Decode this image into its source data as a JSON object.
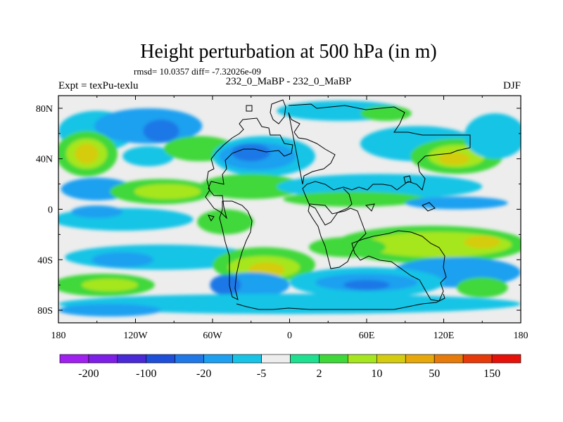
{
  "chart_data": {
    "type": "heatmap",
    "title": "Height perturbation at 500 hPa (in m)",
    "subtitle": "rmsd= 10.0357 diff= -7.32026e-09",
    "left_label": "Expt = texPu-texlu",
    "center_label": "232_0_MaBP - 232_0_MaBP",
    "right_label": "DJF",
    "x_ticks": [
      -180,
      -120,
      -60,
      0,
      60,
      120,
      180
    ],
    "x_tick_labels": [
      "180",
      "120W",
      "60W",
      "0",
      "60E",
      "120E",
      "180"
    ],
    "y_ticks": [
      80,
      40,
      0,
      -40,
      -80
    ],
    "y_tick_labels": [
      "80N",
      "40N",
      "0",
      "40S",
      "80S"
    ],
    "xlim": [
      -180,
      180
    ],
    "ylim": [
      -90,
      90
    ],
    "colorbar_labels": [
      "-200",
      "-100",
      "-20",
      "-5",
      "2",
      "10",
      "50",
      "150"
    ],
    "colorbar_colors": [
      "#a020f0",
      "#7d1fe6",
      "#4a2ad6",
      "#1e4fd8",
      "#1f78e6",
      "#1ea0f0",
      "#17c4e6",
      "#ededed",
      "#1ee090",
      "#3fd83a",
      "#a6e61e",
      "#d4cc10",
      "#e6a80a",
      "#e67a0a",
      "#e63a0a",
      "#e6120a"
    ],
    "contour_fill": {
      "background_level": "#ededed",
      "blobs": [
        {
          "lon": -150,
          "lat": 62,
          "rx": 30,
          "ry": 16,
          "color": "#17c4e6"
        },
        {
          "lon": -110,
          "lat": 66,
          "rx": 42,
          "ry": 14,
          "color": "#1ea0f0"
        },
        {
          "lon": -100,
          "lat": 62,
          "rx": 14,
          "ry": 9,
          "color": "#1f78e6"
        },
        {
          "lon": -158,
          "lat": 44,
          "rx": 24,
          "ry": 18,
          "color": "#3fd83a"
        },
        {
          "lon": -158,
          "lat": 44,
          "rx": 16,
          "ry": 12,
          "color": "#a6e61e"
        },
        {
          "lon": -158,
          "lat": 44,
          "rx": 9,
          "ry": 8,
          "color": "#d4cc10"
        },
        {
          "lon": -110,
          "lat": 42,
          "rx": 20,
          "ry": 8,
          "color": "#17c4e6"
        },
        {
          "lon": -70,
          "lat": 48,
          "rx": 28,
          "ry": 10,
          "color": "#3fd83a"
        },
        {
          "lon": -20,
          "lat": 42,
          "rx": 40,
          "ry": 16,
          "color": "#17c4e6"
        },
        {
          "lon": -25,
          "lat": 42,
          "rx": 30,
          "ry": 11,
          "color": "#1ea0f0"
        },
        {
          "lon": -30,
          "lat": 45,
          "rx": 15,
          "ry": 7,
          "color": "#1f78e6"
        },
        {
          "lon": 40,
          "lat": 78,
          "rx": 50,
          "ry": 8,
          "color": "#17c4e6"
        },
        {
          "lon": 75,
          "lat": 76,
          "rx": 20,
          "ry": 6,
          "color": "#3fd83a"
        },
        {
          "lon": 100,
          "lat": 52,
          "rx": 45,
          "ry": 14,
          "color": "#17c4e6"
        },
        {
          "lon": 130,
          "lat": 42,
          "rx": 36,
          "ry": 14,
          "color": "#3fd83a"
        },
        {
          "lon": 130,
          "lat": 42,
          "rx": 22,
          "ry": 9,
          "color": "#a6e61e"
        },
        {
          "lon": 128,
          "lat": 40,
          "rx": 12,
          "ry": 5,
          "color": "#d4cc10"
        },
        {
          "lon": 160,
          "lat": 58,
          "rx": 24,
          "ry": 18,
          "color": "#17c4e6"
        },
        {
          "lon": -150,
          "lat": 16,
          "rx": 28,
          "ry": 9,
          "color": "#1ea0f0"
        },
        {
          "lon": -100,
          "lat": 14,
          "rx": 40,
          "ry": 10,
          "color": "#3fd83a"
        },
        {
          "lon": -95,
          "lat": 14,
          "rx": 26,
          "ry": 6,
          "color": "#a6e61e"
        },
        {
          "lon": -30,
          "lat": 18,
          "rx": 40,
          "ry": 10,
          "color": "#3fd83a"
        },
        {
          "lon": 70,
          "lat": 18,
          "rx": 80,
          "ry": 10,
          "color": "#17c4e6"
        },
        {
          "lon": 50,
          "lat": 8,
          "rx": 55,
          "ry": 6,
          "color": "#3fd83a"
        },
        {
          "lon": 130,
          "lat": 5,
          "rx": 40,
          "ry": 5,
          "color": "#1ea0f0"
        },
        {
          "lon": -130,
          "lat": -8,
          "rx": 55,
          "ry": 9,
          "color": "#17c4e6"
        },
        {
          "lon": -150,
          "lat": -2,
          "rx": 20,
          "ry": 5,
          "color": "#1ea0f0"
        },
        {
          "lon": -50,
          "lat": -10,
          "rx": 22,
          "ry": 10,
          "color": "#3fd83a"
        },
        {
          "lon": 110,
          "lat": -28,
          "rx": 75,
          "ry": 15,
          "color": "#3fd83a"
        },
        {
          "lon": 115,
          "lat": -28,
          "rx": 58,
          "ry": 10,
          "color": "#a6e61e"
        },
        {
          "lon": 150,
          "lat": -26,
          "rx": 14,
          "ry": 5,
          "color": "#d4cc10"
        },
        {
          "lon": 45,
          "lat": -30,
          "rx": 30,
          "ry": 8,
          "color": "#3fd83a"
        },
        {
          "lon": -100,
          "lat": -38,
          "rx": 75,
          "ry": 10,
          "color": "#17c4e6"
        },
        {
          "lon": -130,
          "lat": -40,
          "rx": 24,
          "ry": 6,
          "color": "#1ea0f0"
        },
        {
          "lon": -20,
          "lat": -44,
          "rx": 40,
          "ry": 14,
          "color": "#3fd83a"
        },
        {
          "lon": -20,
          "lat": -46,
          "rx": 28,
          "ry": 9,
          "color": "#a6e61e"
        },
        {
          "lon": -18,
          "lat": -48,
          "rx": 14,
          "ry": 6,
          "color": "#d4cc10"
        },
        {
          "lon": 130,
          "lat": -50,
          "rx": 50,
          "ry": 12,
          "color": "#1ea0f0"
        },
        {
          "lon": 60,
          "lat": -58,
          "rx": 60,
          "ry": 12,
          "color": "#17c4e6"
        },
        {
          "lon": 60,
          "lat": -58,
          "rx": 40,
          "ry": 7,
          "color": "#1ea0f0"
        },
        {
          "lon": 60,
          "lat": -60,
          "rx": 18,
          "ry": 4,
          "color": "#1f78e6"
        },
        {
          "lon": -145,
          "lat": -60,
          "rx": 40,
          "ry": 9,
          "color": "#3fd83a"
        },
        {
          "lon": -140,
          "lat": -60,
          "rx": 22,
          "ry": 5,
          "color": "#a6e61e"
        },
        {
          "lon": -30,
          "lat": -60,
          "rx": 30,
          "ry": 10,
          "color": "#1ea0f0"
        },
        {
          "lon": -50,
          "lat": -60,
          "rx": 12,
          "ry": 8,
          "color": "#1f78e6"
        },
        {
          "lon": 0,
          "lat": -75,
          "rx": 180,
          "ry": 8,
          "color": "#17c4e6"
        },
        {
          "lon": -140,
          "lat": -80,
          "rx": 40,
          "ry": 5,
          "color": "#1ea0f0"
        },
        {
          "lon": 150,
          "lat": -62,
          "rx": 20,
          "ry": 8,
          "color": "#3fd83a"
        }
      ]
    }
  }
}
